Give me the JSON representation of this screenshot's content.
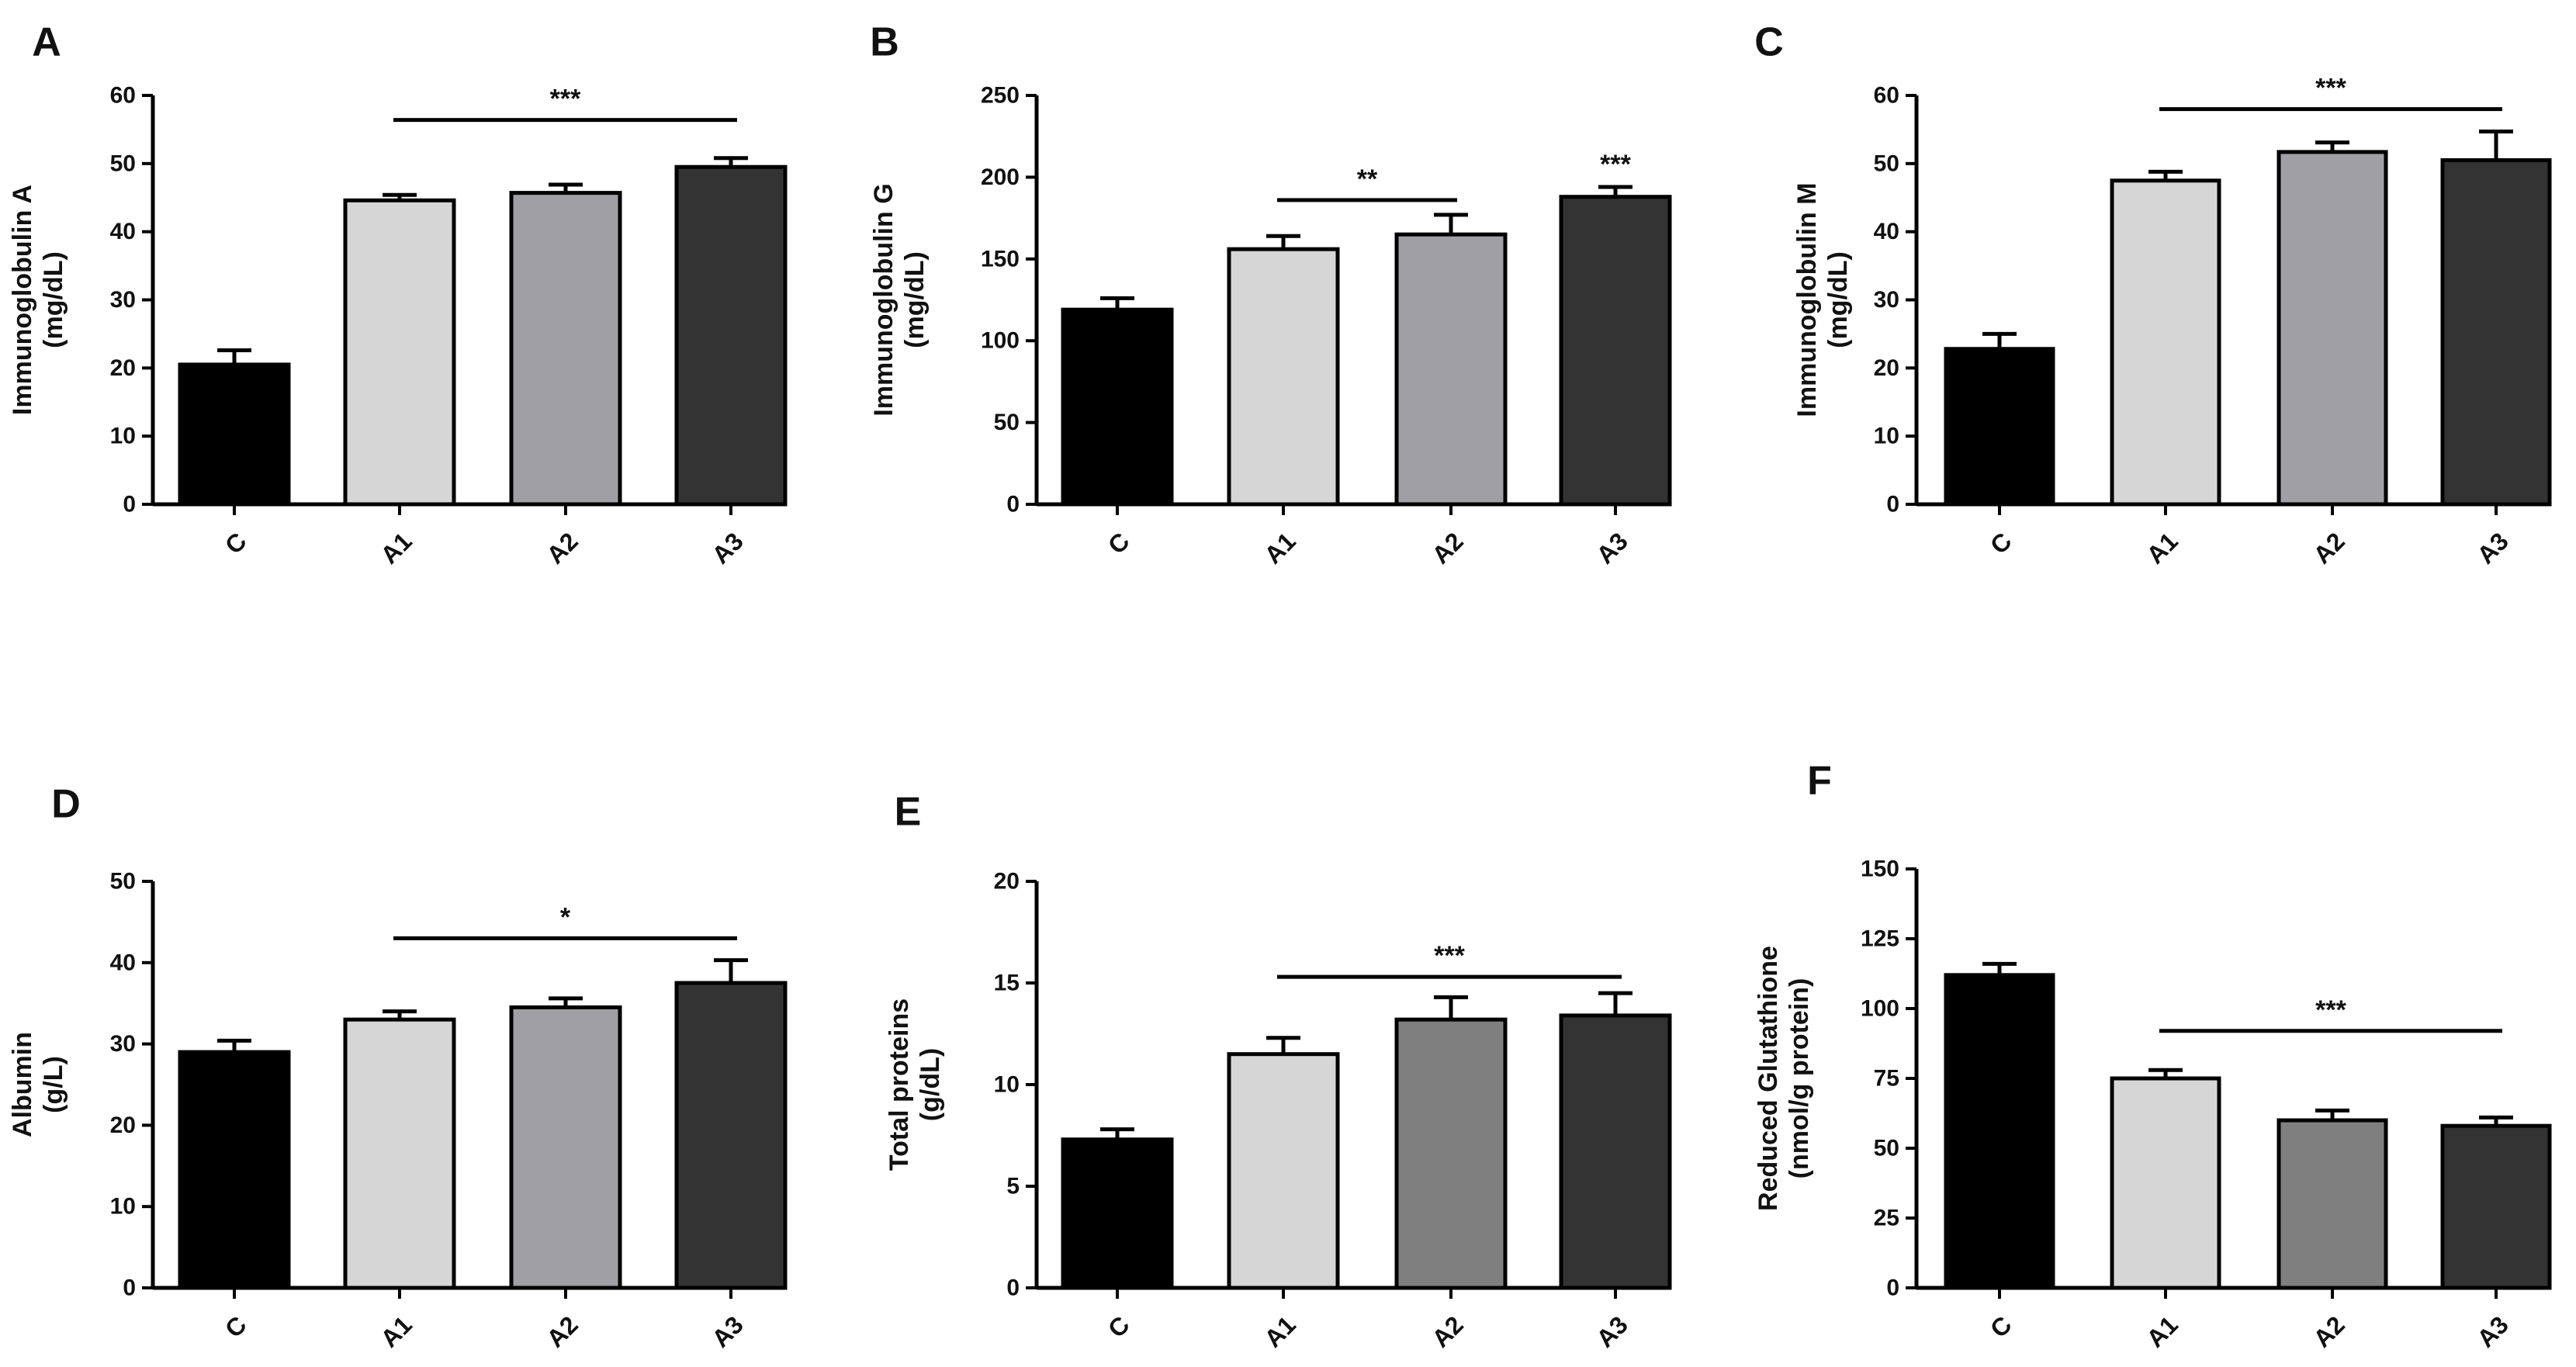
{
  "colors": {
    "C": "#000000",
    "A1": "#d6d6d6",
    "A2": "#a0a0a4",
    "A2_alt": "#7f7f7f",
    "A3": "#333333",
    "axis": "#000000"
  },
  "chart_data": [
    {
      "panel": "A",
      "type": "bar",
      "title": "",
      "ylabel": "Immunoglobulin A",
      "yunit": "(mg/dL)",
      "categories": [
        "C",
        "A1",
        "A2",
        "A3"
      ],
      "values": [
        20.5,
        44.6,
        45.7,
        49.5
      ],
      "errors": [
        2.1,
        0.8,
        1.2,
        1.3
      ],
      "ylim": [
        0,
        60
      ],
      "yticks": [
        0,
        10,
        20,
        30,
        40,
        50,
        60
      ],
      "ytick_labels": [
        "0",
        "10",
        "20",
        "30",
        "40",
        "50",
        "60"
      ],
      "significance": [
        {
          "label": "***",
          "from": "A1",
          "to": "A3",
          "y": 56.4
        }
      ]
    },
    {
      "panel": "B",
      "type": "bar",
      "title": "",
      "ylabel": "Immunoglobulin G",
      "yunit": "(mg/dL)",
      "categories": [
        "C",
        "A1",
        "A2",
        "A3"
      ],
      "values": [
        119,
        156,
        165,
        188
      ],
      "errors": [
        7,
        8,
        12,
        6
      ],
      "ylim": [
        0,
        250
      ],
      "yticks": [
        0,
        50,
        100,
        150,
        200,
        250
      ],
      "ytick_labels": [
        "0",
        "50",
        "100",
        "150",
        "200",
        "250"
      ],
      "significance": [
        {
          "label": "**",
          "from": "A1",
          "to": "A2",
          "y": 186
        },
        {
          "label": "***",
          "from": "A3",
          "to": "A3",
          "y": 0
        }
      ]
    },
    {
      "panel": "C",
      "type": "bar",
      "title": "",
      "ylabel": "Immunoglobulin M",
      "yunit": "(mg/dL)",
      "categories": [
        "C",
        "A1",
        "A2",
        "A3"
      ],
      "values": [
        22.8,
        47.5,
        51.7,
        50.5
      ],
      "errors": [
        2.2,
        1.3,
        1.4,
        4.2
      ],
      "ylim": [
        0,
        60
      ],
      "yticks": [
        0,
        10,
        20,
        30,
        40,
        50,
        60
      ],
      "ytick_labels": [
        "0",
        "10",
        "20",
        "30",
        "40",
        "50",
        "60"
      ],
      "significance": [
        {
          "label": "***",
          "from": "A1",
          "to": "A3",
          "y": 58
        }
      ]
    },
    {
      "panel": "D",
      "type": "bar",
      "title": "",
      "ylabel": "Albumin",
      "yunit": "(g/L)",
      "categories": [
        "C",
        "A1",
        "A2",
        "A3"
      ],
      "values": [
        29.0,
        33.0,
        34.5,
        37.5
      ],
      "errors": [
        1.4,
        1.0,
        1.1,
        2.8
      ],
      "ylim": [
        0,
        50
      ],
      "yticks": [
        0,
        10,
        20,
        30,
        40,
        50
      ],
      "ytick_labels": [
        "0",
        "10",
        "20",
        "30",
        "40",
        "50"
      ],
      "significance": [
        {
          "label": "*",
          "from": "A1",
          "to": "A3",
          "y": 43
        }
      ]
    },
    {
      "panel": "E",
      "type": "bar",
      "title": "",
      "ylabel": "Total proteins",
      "yunit": "(g/dL)",
      "categories": [
        "C",
        "A1",
        "A2",
        "A3"
      ],
      "values": [
        7.3,
        11.5,
        13.2,
        13.4
      ],
      "errors": [
        0.5,
        0.8,
        1.1,
        1.1
      ],
      "ylim": [
        0,
        20
      ],
      "yticks": [
        0,
        5,
        10,
        15,
        20
      ],
      "ytick_labels": [
        "0",
        "5",
        "10",
        "15",
        "20"
      ],
      "significance": [
        {
          "label": "***",
          "from": "A1",
          "to": "A3",
          "y": 15.3
        }
      ]
    },
    {
      "panel": "F",
      "type": "bar",
      "title": "",
      "ylabel": "Reduced Glutathione",
      "yunit": "(nmol/g protein)",
      "categories": [
        "C",
        "A1",
        "A2",
        "A3"
      ],
      "values": [
        112,
        75,
        60,
        58
      ],
      "errors": [
        4,
        3,
        3.5,
        3
      ],
      "ylim": [
        0,
        150
      ],
      "yticks": [
        0,
        25,
        50,
        75,
        100,
        125,
        150
      ],
      "ytick_labels": [
        "0",
        "25",
        "50",
        "75",
        "100",
        "125",
        "150"
      ],
      "significance": [
        {
          "label": "***",
          "from": "A1",
          "to": "A3",
          "y": 92
        }
      ]
    }
  ]
}
